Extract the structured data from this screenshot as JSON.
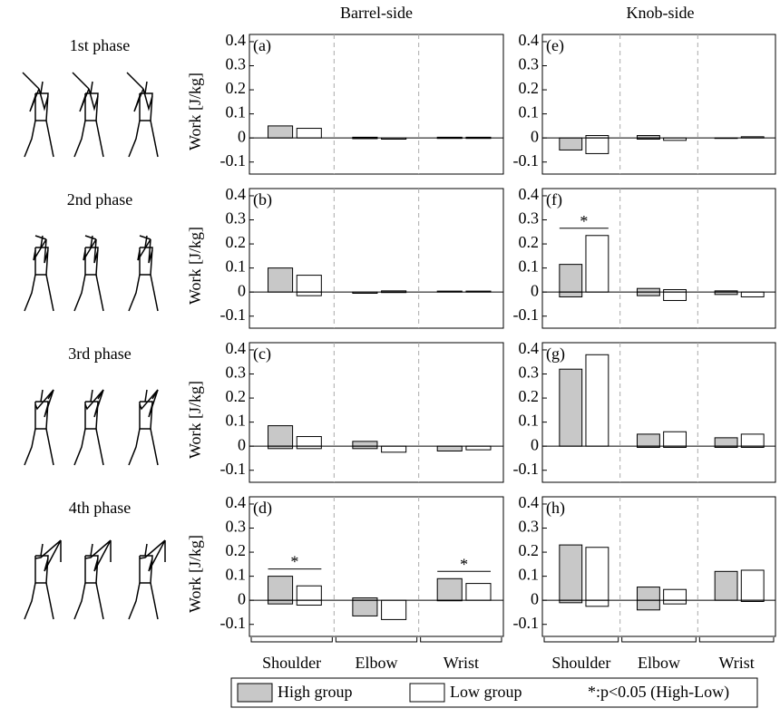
{
  "columns": [
    "Barrel-side",
    "Knob-side"
  ],
  "phases": [
    "1st phase",
    "2nd phase",
    "3rd phase",
    "4th phase"
  ],
  "categories": [
    "Shoulder",
    "Elbow",
    "Wrist"
  ],
  "y_label": "Work [J/kg]",
  "series": [
    {
      "name": "High group",
      "color": "#c8c8c8"
    },
    {
      "name": "Low group",
      "color": "#ffffff"
    }
  ],
  "significance_note": "*:p<0.05 (High-Low)",
  "chart_data": [
    {
      "type": "bar",
      "label": "(a)",
      "ylim": [
        -0.15,
        0.43
      ],
      "yticks": [
        -0.1,
        0,
        0.1,
        0.2,
        0.3,
        0.4
      ],
      "series": [
        {
          "values": [
            0.05,
            0.003,
            0.003
          ],
          "negative_values": [
            0,
            -0.003,
            -0.002
          ]
        },
        {
          "values": [
            0.04,
            0,
            0.003
          ],
          "negative_values": [
            0,
            -0.005,
            -0.002
          ]
        }
      ],
      "annotations": []
    },
    {
      "type": "bar",
      "label": "(b)",
      "ylim": [
        -0.15,
        0.43
      ],
      "yticks": [
        -0.1,
        0,
        0.1,
        0.2,
        0.3,
        0.4
      ],
      "series": [
        {
          "values": [
            0.1,
            0,
            0.004
          ],
          "negative_values": [
            0,
            -0.005,
            0
          ]
        },
        {
          "values": [
            0.07,
            0.005,
            0.004
          ],
          "negative_values": [
            -0.015,
            -0.002,
            0
          ]
        }
      ],
      "annotations": []
    },
    {
      "type": "bar",
      "label": "(c)",
      "ylim": [
        -0.15,
        0.43
      ],
      "yticks": [
        -0.1,
        0,
        0.1,
        0.2,
        0.3,
        0.4
      ],
      "series": [
        {
          "values": [
            0.085,
            0.02,
            0
          ],
          "negative_values": [
            -0.01,
            -0.01,
            -0.02
          ]
        },
        {
          "values": [
            0.04,
            0,
            0
          ],
          "negative_values": [
            -0.01,
            -0.025,
            -0.015
          ]
        }
      ],
      "annotations": []
    },
    {
      "type": "bar",
      "label": "(d)",
      "ylim": [
        -0.15,
        0.43
      ],
      "yticks": [
        -0.1,
        0,
        0.1,
        0.2,
        0.3,
        0.4
      ],
      "series": [
        {
          "values": [
            0.1,
            0.01,
            0.09
          ],
          "negative_values": [
            -0.015,
            -0.065,
            -0.002
          ]
        },
        {
          "values": [
            0.06,
            0,
            0.07
          ],
          "negative_values": [
            -0.02,
            -0.08,
            0
          ]
        }
      ],
      "annotations": [
        {
          "text": "*",
          "category": "Shoulder"
        },
        {
          "text": "*",
          "category": "Wrist"
        }
      ]
    },
    {
      "type": "bar",
      "label": "(e)",
      "ylim": [
        -0.15,
        0.43
      ],
      "yticks": [
        -0.1,
        0,
        0.1,
        0.2,
        0.3,
        0.4
      ],
      "series": [
        {
          "values": [
            0,
            0.01,
            0
          ],
          "negative_values": [
            -0.05,
            -0.005,
            -0.002
          ]
        },
        {
          "values": [
            0.01,
            0,
            0.005
          ],
          "negative_values": [
            -0.065,
            -0.01,
            0
          ]
        }
      ],
      "annotations": []
    },
    {
      "type": "bar",
      "label": "(f)",
      "ylim": [
        -0.15,
        0.43
      ],
      "yticks": [
        -0.1,
        0,
        0.1,
        0.2,
        0.3,
        0.4
      ],
      "series": [
        {
          "values": [
            0.115,
            0.015,
            0.005
          ],
          "negative_values": [
            -0.02,
            -0.015,
            -0.01
          ]
        },
        {
          "values": [
            0.235,
            0.01,
            0
          ],
          "negative_values": [
            0,
            -0.035,
            -0.02
          ]
        }
      ],
      "annotations": [
        {
          "text": "*",
          "category": "Shoulder"
        }
      ]
    },
    {
      "type": "bar",
      "label": "(g)",
      "ylim": [
        -0.15,
        0.43
      ],
      "yticks": [
        -0.1,
        0,
        0.1,
        0.2,
        0.3,
        0.4
      ],
      "series": [
        {
          "values": [
            0.32,
            0.05,
            0.035
          ],
          "negative_values": [
            0,
            -0.005,
            -0.005
          ]
        },
        {
          "values": [
            0.38,
            0.06,
            0.05
          ],
          "negative_values": [
            0,
            -0.005,
            -0.005
          ]
        }
      ],
      "annotations": []
    },
    {
      "type": "bar",
      "label": "(h)",
      "ylim": [
        -0.15,
        0.43
      ],
      "yticks": [
        -0.1,
        0,
        0.1,
        0.2,
        0.3,
        0.4
      ],
      "series": [
        {
          "values": [
            0.23,
            0.055,
            0.12
          ],
          "negative_values": [
            -0.01,
            -0.04,
            0
          ]
        },
        {
          "values": [
            0.22,
            0.045,
            0.125
          ],
          "negative_values": [
            -0.025,
            -0.015,
            -0.005
          ]
        }
      ],
      "annotations": []
    }
  ]
}
